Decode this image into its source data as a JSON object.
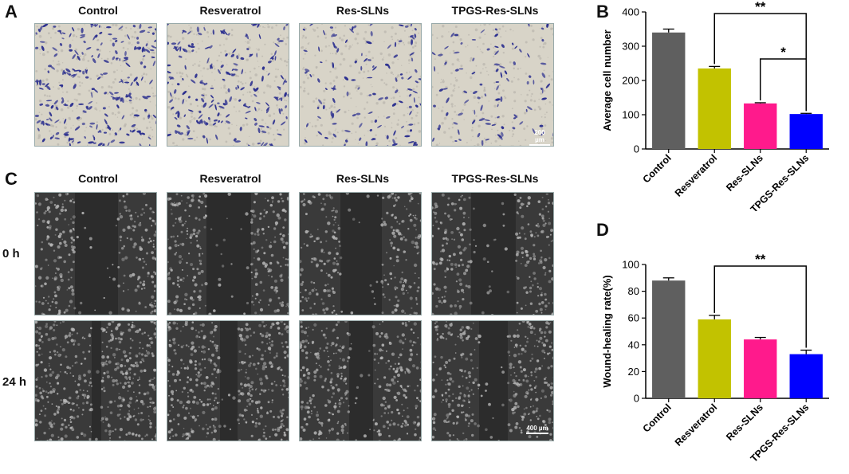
{
  "panels": {
    "a": "A",
    "b": "B",
    "c": "C",
    "d": "D"
  },
  "panel_a": {
    "columns": [
      "Control",
      "Resveratrol",
      "Res-SLNs",
      "TPGS-Res-SLNs"
    ],
    "scale_bar": "200 µm",
    "colors": {
      "stain": "#2b2f8f",
      "background": "#d8d4c8"
    }
  },
  "panel_c": {
    "columns": [
      "Control",
      "Resveratrol",
      "Res-SLNs",
      "TPGS-Res-SLNs"
    ],
    "rows": [
      "0 h",
      "24 h"
    ],
    "scale_bar": "400 µm",
    "colors": {
      "background": "#3a3a3a",
      "cells": "#bdbdbd"
    }
  },
  "chart_data": [
    {
      "type": "bar",
      "panel": "B",
      "categories": [
        "Control",
        "Resveratrol",
        "Res-SLNs",
        "TPGS-Res-SLNs"
      ],
      "values": [
        340,
        235,
        133,
        102
      ],
      "errors": [
        10,
        6,
        2,
        2
      ],
      "colors": [
        "#5f5f5f",
        "#c2c200",
        "#ff1a8c",
        "#0000ff"
      ],
      "ylabel": "Average cell number",
      "xlabel": "",
      "ylim": [
        0,
        400
      ],
      "yticks": [
        0,
        100,
        200,
        300,
        400
      ],
      "significance": [
        {
          "from": "Resveratrol",
          "to": "TPGS-Res-SLNs",
          "label": "**"
        },
        {
          "from": "Res-SLNs",
          "to": "TPGS-Res-SLNs",
          "label": "*"
        }
      ]
    },
    {
      "type": "bar",
      "panel": "D",
      "categories": [
        "Control",
        "Resveratrol",
        "Res-SLNs",
        "TPGS-Res-SLNs"
      ],
      "values": [
        88,
        59,
        44,
        33
      ],
      "errors": [
        2,
        3,
        1.5,
        3
      ],
      "colors": [
        "#5f5f5f",
        "#c2c200",
        "#ff1a8c",
        "#0000ff"
      ],
      "ylabel": "Wound-healing rate(%)",
      "xlabel": "",
      "ylim": [
        0,
        100
      ],
      "yticks": [
        0,
        20,
        40,
        60,
        80,
        100
      ],
      "significance": [
        {
          "from": "Resveratrol",
          "to": "TPGS-Res-SLNs",
          "label": "**"
        }
      ]
    }
  ]
}
